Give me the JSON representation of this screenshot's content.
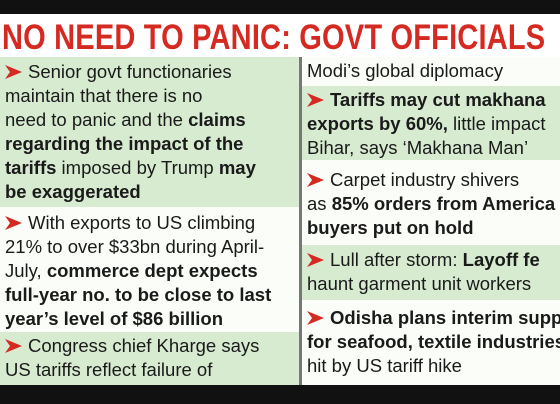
{
  "header": {
    "title": "NO NEED TO PANIC: GOVT OFFICIALS"
  },
  "columns": [
    {
      "items": [
        {
          "bullet": true,
          "lines": [
            [
              {
                "text": "Senior govt functionaries",
                "bold": false
              }
            ],
            [
              {
                "text": "maintain that there is no",
                "bold": false
              }
            ],
            [
              {
                "text": "need to panic and the ",
                "bold": false
              },
              {
                "text": "claims",
                "bold": true
              }
            ],
            [
              {
                "text": "regarding the impact of the",
                "bold": true
              }
            ],
            [
              {
                "text": "tariffs",
                "bold": true
              },
              {
                "text": " imposed by Trump ",
                "bold": false
              },
              {
                "text": "may",
                "bold": true
              }
            ],
            [
              {
                "text": "be exaggerated",
                "bold": true
              }
            ]
          ]
        },
        {
          "bullet": true,
          "lines": [
            [
              {
                "text": "With exports to US climbing",
                "bold": false
              }
            ],
            [
              {
                "text": "21% to over $33bn during April-",
                "bold": false
              }
            ],
            [
              {
                "text": "July, ",
                "bold": false
              },
              {
                "text": "commerce dept expects",
                "bold": true
              }
            ],
            [
              {
                "text": "full-year no. to be close to last",
                "bold": true
              }
            ],
            [
              {
                "text": "year’s level of $86 billion",
                "bold": true
              }
            ]
          ]
        },
        {
          "bullet": true,
          "lines": [
            [
              {
                "text": "Congress chief Kharge says",
                "bold": false
              }
            ],
            [
              {
                "text": "US tariffs reflect failure of",
                "bold": false
              }
            ]
          ]
        }
      ]
    },
    {
      "items": [
        {
          "bullet": false,
          "lines": [
            [
              {
                "text": "Modi’s global diplomacy",
                "bold": false
              }
            ]
          ]
        },
        {
          "bullet": true,
          "lines": [
            [
              {
                "text": "Tariffs may cut makhana",
                "bold": true
              }
            ],
            [
              {
                "text": "exports by 60%,",
                "bold": true
              },
              {
                "text": " little impact",
                "bold": false
              }
            ],
            [
              {
                "text": "Bihar, says ‘Makhana Man’",
                "bold": false
              }
            ]
          ]
        },
        {
          "bullet": true,
          "lines": [
            [
              {
                "text": "Carpet industry shivers",
                "bold": false
              }
            ],
            [
              {
                "text": "as ",
                "bold": false
              },
              {
                "text": "85% orders from America",
                "bold": true
              }
            ],
            [
              {
                "text": "buyers put on hold",
                "bold": true
              }
            ]
          ]
        },
        {
          "bullet": true,
          "lines": [
            [
              {
                "text": "Lull after storm: ",
                "bold": false
              },
              {
                "text": "Layoff fe",
                "bold": true
              }
            ],
            [
              {
                "text": "haunt garment unit workers",
                "bold": false
              }
            ]
          ]
        },
        {
          "bullet": true,
          "lines": [
            [
              {
                "text": "Odisha plans interim supp",
                "bold": true
              }
            ],
            [
              {
                "text": "for seafood, textile industries",
                "bold": true
              }
            ],
            [
              {
                "text": "hit by US tariff hike",
                "bold": false
              }
            ]
          ]
        }
      ]
    }
  ]
}
